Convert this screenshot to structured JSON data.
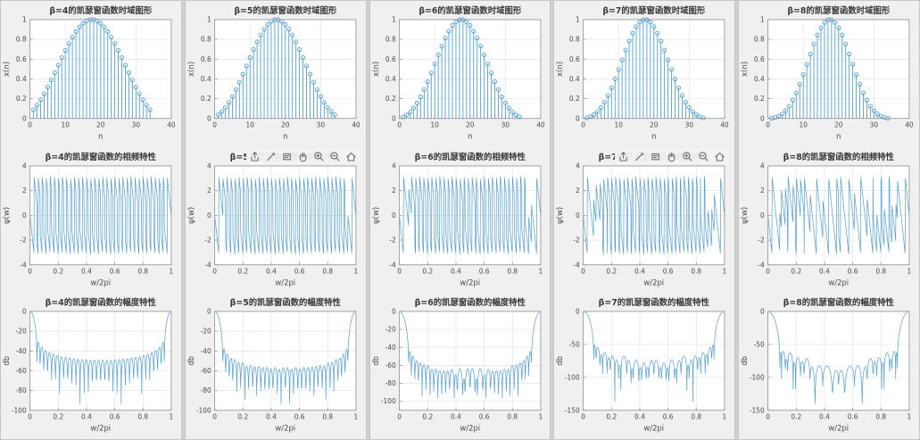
{
  "app": {
    "page_background": "#cfcfcf",
    "window_background": "#f0f0f0",
    "plot_background": "#ffffff",
    "accent_line_color": "#4f9fd2",
    "grid_color": "#e4e4e4",
    "axis_color": "#8f8f8f",
    "tick_text_color": "#4a4a4a",
    "title_text_color": "#3a3a3a",
    "toolbar_icon_color": "#6f6f6f"
  },
  "toolbar": {
    "visible_on_beta": [
      5,
      7
    ],
    "icons": [
      {
        "name": "export-icon"
      },
      {
        "name": "brush-icon"
      },
      {
        "name": "datatips-icon"
      },
      {
        "name": "pan-icon"
      },
      {
        "name": "zoom-in-icon"
      },
      {
        "name": "zoom-out-icon"
      },
      {
        "name": "restore-view-icon"
      }
    ]
  },
  "chart_data": [
    {
      "beta": 4,
      "time": {
        "type": "stem",
        "title": "β=4的凯瑟窗函数时域图形",
        "xlabel": "n",
        "ylabel": "x(n)",
        "xlim": [
          0,
          40
        ],
        "ylim": [
          0,
          1
        ],
        "xticks": [
          0,
          10,
          20,
          30,
          40
        ],
        "yticks": [
          0,
          0.2,
          0.4,
          0.6,
          0.8,
          1
        ],
        "x_start": 1,
        "values": [
          0.089,
          0.135,
          0.189,
          0.25,
          0.317,
          0.388,
          0.463,
          0.539,
          0.615,
          0.688,
          0.758,
          0.822,
          0.878,
          0.925,
          0.961,
          0.986,
          0.999,
          0.999,
          0.986,
          0.961,
          0.925,
          0.878,
          0.822,
          0.758,
          0.688,
          0.615,
          0.539,
          0.463,
          0.388,
          0.317,
          0.25,
          0.189,
          0.135,
          0.089
        ]
      },
      "phase": {
        "type": "line",
        "title": "β=4的凯瑟窗函数的相频特性",
        "xlabel": "w/2pi",
        "ylabel": "ψ(w)",
        "xlim": [
          0,
          1
        ],
        "ylim": [
          -4,
          4
        ],
        "xticks": [
          0,
          0.2,
          0.4,
          0.6,
          0.8,
          1
        ],
        "yticks": [
          -4,
          -2,
          0,
          2,
          4
        ],
        "derived_from": "time.values",
        "transform": "dtft_phase",
        "samples": 512
      },
      "magnitude": {
        "type": "line",
        "title": "β=4的凯瑟窗函数的幅度特性",
        "xlabel": "w/2pi",
        "ylabel": "db",
        "xlim": [
          0,
          1
        ],
        "ylim": [
          -100,
          0
        ],
        "xticks": [
          0,
          0.2,
          0.4,
          0.6,
          0.8,
          1
        ],
        "yticks": [
          0,
          -20,
          -40,
          -60,
          -80,
          -100
        ],
        "derived_from": "time.values",
        "transform": "dtft_magnitude_db",
        "samples": 512
      }
    },
    {
      "beta": 5,
      "time": {
        "type": "stem",
        "title": "β=5的凯瑟窗函数时域图形",
        "xlabel": "n",
        "ylabel": "x(n)",
        "xlim": [
          0,
          40
        ],
        "ylim": [
          0,
          1
        ],
        "xticks": [
          0,
          10,
          20,
          30,
          40
        ],
        "yticks": [
          0,
          0.2,
          0.4,
          0.6,
          0.8,
          1
        ],
        "x_start": 1,
        "values": [
          0.037,
          0.069,
          0.111,
          0.162,
          0.222,
          0.29,
          0.366,
          0.447,
          0.531,
          0.615,
          0.697,
          0.774,
          0.844,
          0.902,
          0.949,
          0.981,
          0.999,
          0.999,
          0.981,
          0.949,
          0.902,
          0.844,
          0.774,
          0.697,
          0.615,
          0.531,
          0.447,
          0.366,
          0.29,
          0.222,
          0.162,
          0.111,
          0.069,
          0.037
        ]
      },
      "phase": {
        "type": "line",
        "title": "β=5的凯瑟窗函数的相频特性",
        "xlabel": "w/2pi",
        "ylabel": "ψ(w)",
        "xlim": [
          0,
          1
        ],
        "ylim": [
          -4,
          4
        ],
        "xticks": [
          0,
          0.2,
          0.4,
          0.6,
          0.8,
          1
        ],
        "yticks": [
          -4,
          -2,
          0,
          2,
          4
        ],
        "derived_from": "time.values",
        "transform": "dtft_phase",
        "samples": 512
      },
      "magnitude": {
        "type": "line",
        "title": "β=5的凯瑟窗函数的幅度特性",
        "xlabel": "w/2pi",
        "ylabel": "db",
        "xlim": [
          0,
          1
        ],
        "ylim": [
          -100,
          0
        ],
        "xticks": [
          0,
          0.2,
          0.4,
          0.6,
          0.8,
          1
        ],
        "yticks": [
          0,
          -20,
          -40,
          -60,
          -80,
          -100
        ],
        "derived_from": "time.values",
        "transform": "dtft_magnitude_db",
        "samples": 512
      }
    },
    {
      "beta": 6,
      "time": {
        "type": "stem",
        "title": "β=6的凯瑟窗函数时域图形",
        "xlabel": "n",
        "ylabel": "x(n)",
        "xlim": [
          0,
          40
        ],
        "ylim": [
          0,
          1
        ],
        "xticks": [
          0,
          10,
          20,
          30,
          40
        ],
        "yticks": [
          0,
          0.2,
          0.4,
          0.6,
          0.8,
          1
        ],
        "x_start": 1,
        "values": [
          0.015,
          0.035,
          0.065,
          0.105,
          0.156,
          0.218,
          0.291,
          0.372,
          0.46,
          0.551,
          0.643,
          0.731,
          0.813,
          0.882,
          0.939,
          0.977,
          0.998,
          0.998,
          0.977,
          0.939,
          0.882,
          0.813,
          0.731,
          0.643,
          0.551,
          0.46,
          0.372,
          0.291,
          0.218,
          0.156,
          0.105,
          0.065,
          0.035,
          0.015
        ]
      },
      "phase": {
        "type": "line",
        "title": "β=6的凯瑟窗函数的相频特性",
        "xlabel": "w/2pi",
        "ylabel": "ψ(w)",
        "xlim": [
          0,
          1
        ],
        "ylim": [
          -4,
          4
        ],
        "xticks": [
          0,
          0.2,
          0.4,
          0.6,
          0.8,
          1
        ],
        "yticks": [
          -4,
          -2,
          0,
          2,
          4
        ],
        "derived_from": "time.values",
        "transform": "dtft_phase",
        "samples": 512
      },
      "magnitude": {
        "type": "line",
        "title": "β=6的凯瑟窗函数的幅度特性",
        "xlabel": "w/2pi",
        "ylabel": "db",
        "xlim": [
          0,
          1
        ],
        "ylim": [
          -110,
          0
        ],
        "xticks": [
          0,
          0.2,
          0.4,
          0.6,
          0.8,
          1
        ],
        "yticks": [
          0,
          -20,
          -40,
          -60,
          -80,
          -100
        ],
        "derived_from": "time.values",
        "transform": "dtft_magnitude_db",
        "samples": 512
      }
    },
    {
      "beta": 7,
      "time": {
        "type": "stem",
        "title": "β=7的凯瑟窗函数时域图形",
        "xlabel": "n",
        "ylabel": "x(n)",
        "xlim": [
          0,
          40
        ],
        "ylim": [
          0,
          1
        ],
        "xticks": [
          0,
          10,
          20,
          30,
          40
        ],
        "yticks": [
          0,
          0.2,
          0.4,
          0.6,
          0.8,
          1
        ],
        "x_start": 1,
        "values": [
          0.006,
          0.018,
          0.038,
          0.068,
          0.11,
          0.164,
          0.231,
          0.31,
          0.399,
          0.494,
          0.593,
          0.691,
          0.782,
          0.862,
          0.928,
          0.974,
          0.998,
          0.998,
          0.974,
          0.928,
          0.862,
          0.782,
          0.691,
          0.593,
          0.494,
          0.399,
          0.31,
          0.231,
          0.164,
          0.11,
          0.068,
          0.038,
          0.018,
          0.006
        ]
      },
      "phase": {
        "type": "line",
        "title": "β=7的凯瑟窗函数的相频特性",
        "xlabel": "w/2pi",
        "ylabel": "ψ(w)",
        "xlim": [
          0,
          1
        ],
        "ylim": [
          -4,
          4
        ],
        "xticks": [
          0,
          0.2,
          0.4,
          0.6,
          0.8,
          1
        ],
        "yticks": [
          -4,
          -2,
          0,
          2,
          4
        ],
        "derived_from": "time.values",
        "transform": "dtft_phase",
        "samples": 512
      },
      "magnitude": {
        "type": "line",
        "title": "β=7的凯瑟窗函数的幅度特性",
        "xlabel": "w/2pi",
        "ylabel": "db",
        "xlim": [
          0,
          1
        ],
        "ylim": [
          -150,
          0
        ],
        "xticks": [
          0,
          0.2,
          0.4,
          0.6,
          0.8,
          1
        ],
        "yticks": [
          0,
          -50,
          -100,
          -150
        ],
        "derived_from": "time.values",
        "transform": "dtft_magnitude_db",
        "samples": 512
      }
    },
    {
      "beta": 8,
      "time": {
        "type": "stem",
        "title": "β=8的凯瑟窗函数时域图形",
        "xlabel": "n",
        "ylabel": "x(n)",
        "xlim": [
          0,
          40
        ],
        "ylim": [
          0,
          1
        ],
        "xticks": [
          0,
          10,
          20,
          30,
          40
        ],
        "yticks": [
          0,
          0.2,
          0.4,
          0.6,
          0.8,
          1
        ],
        "x_start": 1,
        "values": [
          0.002,
          0.009,
          0.023,
          0.045,
          0.078,
          0.124,
          0.184,
          0.258,
          0.345,
          0.443,
          0.547,
          0.652,
          0.753,
          0.843,
          0.917,
          0.97,
          0.998,
          0.998,
          0.97,
          0.917,
          0.843,
          0.753,
          0.652,
          0.547,
          0.443,
          0.345,
          0.258,
          0.184,
          0.124,
          0.078,
          0.045,
          0.023,
          0.009,
          0.002
        ]
      },
      "phase": {
        "type": "line",
        "title": "β=8的凯瑟窗函数的相频特性",
        "xlabel": "w/2pi",
        "ylabel": "ψ(w)",
        "xlim": [
          0,
          1
        ],
        "ylim": [
          -4,
          4
        ],
        "xticks": [
          0,
          0.2,
          0.4,
          0.6,
          0.8,
          1
        ],
        "yticks": [
          -4,
          -2,
          0,
          2,
          4
        ],
        "derived_from": "time.values",
        "transform": "dtft_phase",
        "samples": 512
      },
      "magnitude": {
        "type": "line",
        "title": "β=8的凯瑟窗函数的幅度特性",
        "xlabel": "w/2pi",
        "ylabel": "db",
        "xlim": [
          0,
          1
        ],
        "ylim": [
          -150,
          0
        ],
        "xticks": [
          0,
          0.2,
          0.4,
          0.6,
          0.8,
          1
        ],
        "yticks": [
          0,
          -50,
          -100,
          -150
        ],
        "derived_from": "time.values",
        "transform": "dtft_magnitude_db",
        "samples": 512
      }
    }
  ]
}
